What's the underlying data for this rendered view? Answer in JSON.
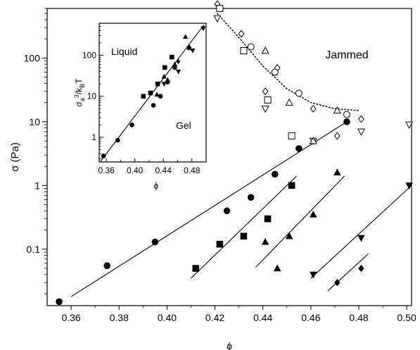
{
  "chart_data": [
    {
      "type": "scatter",
      "title": "",
      "xlabel": "ϕ",
      "ylabel": "σ (Pa)",
      "xlim": [
        0.35,
        0.502
      ],
      "ylim": [
        0.013,
        600
      ],
      "yscale": "log",
      "xticks": [
        "0.36",
        "0.38",
        "0.40",
        "0.42",
        "0.44",
        "0.46",
        "0.48",
        "0.50"
      ],
      "yticks": [
        "0.1",
        "1",
        "10",
        "100"
      ],
      "annotations": [
        "Jammed"
      ],
      "series": [
        {
          "marker": "filled-circle",
          "x": [
            0.355,
            0.375,
            0.395,
            0.425,
            0.435,
            0.445,
            0.455,
            0.475
          ],
          "y": [
            0.015,
            0.055,
            0.13,
            0.4,
            0.65,
            1.5,
            3.8,
            10
          ]
        },
        {
          "marker": "filled-square",
          "x": [
            0.412,
            0.422,
            0.432,
            0.442,
            0.452
          ],
          "y": [
            0.05,
            0.12,
            0.16,
            0.3,
            1.0
          ]
        },
        {
          "marker": "filled-triangle-up",
          "x": [
            0.441,
            0.446,
            0.451,
            0.461,
            0.471
          ],
          "y": [
            0.13,
            0.05,
            0.16,
            0.35,
            1.6
          ]
        },
        {
          "marker": "filled-triangle-down",
          "x": [
            0.461,
            0.481,
            0.501
          ],
          "y": [
            0.04,
            0.15,
            1.0
          ]
        },
        {
          "marker": "filled-diamond",
          "x": [
            0.471,
            0.481
          ],
          "y": [
            0.03,
            0.05
          ]
        },
        {
          "marker": "open-diamond",
          "x": [
            0.421,
            0.431,
            0.441,
            0.446,
            0.461,
            0.471,
            0.481
          ],
          "y": [
            700,
            240,
            30,
            70,
            16,
            6,
            11
          ]
        },
        {
          "marker": "open-triangle-down",
          "x": [
            0.421,
            0.441,
            0.461,
            0.481,
            0.501
          ],
          "y": [
            420,
            16,
            5,
            7,
            9
          ]
        },
        {
          "marker": "open-square",
          "x": [
            0.422,
            0.432,
            0.442,
            0.452
          ],
          "y": [
            600,
            130,
            22,
            6
          ]
        },
        {
          "marker": "open-triangle-up",
          "x": [
            0.441,
            0.451,
            0.461,
            0.471
          ],
          "y": [
            130,
            20,
            5,
            15
          ]
        },
        {
          "marker": "open-circle",
          "x": [
            0.435,
            0.445,
            0.455,
            0.475
          ],
          "y": [
            150,
            60,
            28,
            13
          ]
        }
      ],
      "fit_lines": [
        {
          "style": "solid",
          "x": [
            0.36,
            0.475
          ],
          "y": [
            0.018,
            10
          ]
        },
        {
          "style": "solid",
          "x": [
            0.41,
            0.454
          ],
          "y": [
            0.035,
            1.4
          ]
        },
        {
          "style": "solid",
          "x": [
            0.437,
            0.474
          ],
          "y": [
            0.052,
            1.4
          ]
        },
        {
          "style": "solid",
          "x": [
            0.46,
            0.502
          ],
          "y": [
            0.035,
            1.0
          ]
        },
        {
          "style": "solid",
          "x": [
            0.467,
            0.484
          ],
          "y": [
            0.022,
            0.085
          ]
        }
      ],
      "boundary_curve": {
        "style": "dotted",
        "x": [
          0.421,
          0.43,
          0.44,
          0.45,
          0.46,
          0.47,
          0.48
        ],
        "y": [
          500,
          210,
          75,
          33,
          20,
          16,
          15
        ]
      }
    },
    {
      "type": "scatter",
      "title": "",
      "xlabel": "ϕ",
      "ylabel": "σa³/kBT",
      "ylabel_parts": [
        "σ",
        "a",
        "3",
        "/k",
        "B",
        "T"
      ],
      "xlim": [
        0.35,
        0.5
      ],
      "ylim": [
        0.25,
        600
      ],
      "yscale": "log",
      "xticks": [
        "0.36",
        "0.40",
        "0.44",
        "0.48"
      ],
      "yticks": [
        "1",
        "10",
        "100"
      ],
      "annotations": [
        "Liquid",
        "Gel"
      ],
      "series": [
        {
          "marker": "filled-circle",
          "x": [
            0.356,
            0.376,
            0.396,
            0.426,
            0.436,
            0.446,
            0.456,
            0.476
          ],
          "y": [
            0.35,
            0.85,
            2.0,
            6.0,
            10,
            22,
            50,
            150
          ]
        },
        {
          "marker": "filled-square",
          "x": [
            0.412,
            0.422,
            0.432,
            0.442,
            0.452
          ],
          "y": [
            10,
            12,
            20,
            50,
            90
          ]
        },
        {
          "marker": "filled-triangle-up",
          "x": [
            0.431,
            0.441,
            0.446,
            0.456,
            0.471
          ],
          "y": [
            11,
            30,
            25,
            60,
            280
          ]
        },
        {
          "marker": "filled-triangle-down",
          "x": [
            0.441,
            0.461,
            0.481,
            0.496
          ],
          "y": [
            20,
            40,
            130,
            450
          ]
        },
        {
          "marker": "filled-diamond",
          "x": [
            0.461,
            0.476
          ],
          "y": [
            70,
            160
          ]
        }
      ],
      "fit_lines": [
        {
          "style": "solid",
          "x": [
            0.352,
            0.497
          ],
          "y": [
            0.26,
            550
          ]
        }
      ]
    }
  ]
}
